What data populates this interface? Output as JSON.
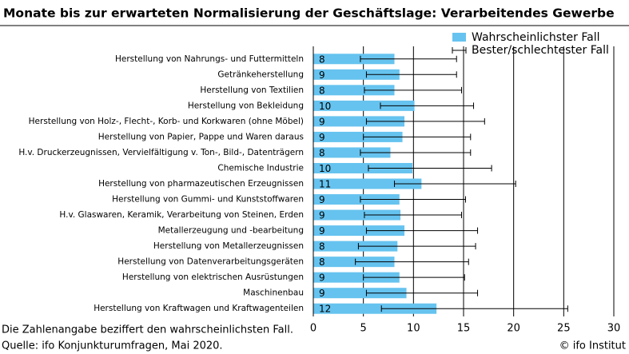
{
  "chart_data": {
    "type": "bar",
    "title": "Monate bis zur erwarteten Normalisierung der Geschäftslage: Verarbeitendes Gewerbe",
    "categories": [
      "Herstellung von Nahrungs- und Futtermitteln",
      "Getränkeherstellung",
      "Herstellung von Textilien",
      "Herstellung von Bekleidung",
      "Herstellung von Holz-, Flecht-, Korb- und Korkwaren (ohne Möbel)",
      "Herstellung von Papier, Pappe und Waren daraus",
      "H.v. Druckerzeugnissen, Vervielfältigung v. Ton-, Bild-, Datenträgern",
      "Chemische Industrie",
      "Herstellung von pharmazeutischen Erzeugnissen",
      "Herstellung von Gummi- und Kunststoffwaren",
      "H.v. Glaswaren, Keramik, Verarbeitung von Steinen, Erden",
      "Metallerzeugung und -bearbeitung",
      "Herstellung von Metallerzeugnissen",
      "Herstellung von Datenverarbeitungsgeräten",
      "Herstellung von elektrischen Ausrüstungen",
      "Maschinenbau",
      "Herstellung von Kraftwagen und Kraftwagenteilen"
    ],
    "series": [
      {
        "name": "Wahrscheinlichster Fall",
        "color": "#66c3ef",
        "values": [
          8.1,
          8.6,
          8.1,
          10.1,
          9.1,
          8.9,
          7.7,
          9.9,
          10.8,
          8.6,
          8.7,
          9.1,
          8.4,
          8.1,
          8.6,
          9.3,
          12.3
        ],
        "value_labels": [
          "8",
          "9",
          "8",
          "10",
          "9",
          "9",
          "8",
          "10",
          "11",
          "9",
          "9",
          "9",
          "8",
          "8",
          "9",
          "9",
          "12"
        ]
      },
      {
        "name": "Bester/schlechtester Fall",
        "color": "#000000",
        "low": [
          4.7,
          5.3,
          5.1,
          6.7,
          5.3,
          5.0,
          4.7,
          5.5,
          8.1,
          4.7,
          5.1,
          5.3,
          4.5,
          4.2,
          5.0,
          5.3,
          6.8
        ],
        "high": [
          14.3,
          14.3,
          14.8,
          16.0,
          17.1,
          15.7,
          15.7,
          17.8,
          20.2,
          15.2,
          14.8,
          16.4,
          16.2,
          15.5,
          15.1,
          16.4,
          25.4
        ]
      }
    ],
    "xlim": [
      0,
      30
    ],
    "xticks": [
      0,
      5,
      10,
      15,
      20,
      25,
      30
    ],
    "grid": true,
    "notes": [
      "Die Zahlenangabe beziffert den wahrscheinlichsten Fall.",
      "Quelle: ifo Konjunkturumfragen, Mai 2020."
    ],
    "credit": "© ifo Institut"
  }
}
